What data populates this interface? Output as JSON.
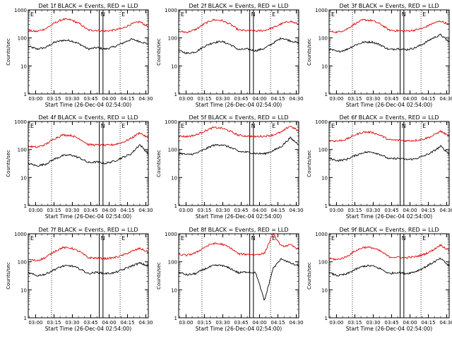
{
  "chart_data": {
    "type": "line",
    "layout": "3x3 grid",
    "ylabel": "Counts/sec",
    "y_scale": "log",
    "ylim": [
      1,
      1000
    ],
    "y_ticks": [
      "1",
      "10",
      "100",
      "1000"
    ],
    "x_ticks": [
      "03:00",
      "03:15",
      "03:30",
      "03:45",
      "04:00",
      "04:15",
      "04:30"
    ],
    "xlim": [
      "02:54",
      "04:32"
    ],
    "xlabel": "Start Time (26-Dec-04 02:54:00)",
    "legend_text": "BLACK = Events, RED = LLD",
    "series_colors": {
      "events": "#000000",
      "lld": "#e00000"
    },
    "markers": {
      "dotted_lines": [
        "03:13",
        "04:09"
      ],
      "solid_lines": [
        "03:52",
        "03:55"
      ],
      "labels": [
        "E",
        "N",
        "E"
      ]
    },
    "panels": [
      {
        "title": "Det 1f",
        "series": [
          {
            "key": "events",
            "values": [
              50,
              40,
              45,
              68,
              82,
              80,
              60,
              40,
              45,
              40,
              48,
              65,
              90,
              75,
              60
            ]
          },
          {
            "key": "lld",
            "values": [
              180,
              170,
              210,
              330,
              460,
              440,
              320,
              190,
              185,
              175,
              190,
              220,
              310,
              380,
              250
            ]
          }
        ]
      },
      {
        "title": "Det 2f",
        "series": [
          {
            "key": "events",
            "values": [
              35,
              28,
              32,
              50,
              68,
              75,
              58,
              38,
              40,
              35,
              42,
              65,
              100,
              80,
              65
            ]
          },
          {
            "key": "lld",
            "values": [
              170,
              160,
              200,
              320,
              440,
              420,
              310,
              190,
              180,
              175,
              185,
              230,
              320,
              400,
              300
            ]
          }
        ]
      },
      {
        "title": "Det 3f",
        "series": [
          {
            "key": "events",
            "values": [
              40,
              32,
              38,
              55,
              70,
              72,
              56,
              38,
              42,
              38,
              44,
              62,
              95,
              130,
              70
            ]
          },
          {
            "key": "lld",
            "values": [
              170,
              160,
              200,
              320,
              440,
              420,
              310,
              190,
              180,
              175,
              190,
              225,
              320,
              400,
              300
            ]
          }
        ]
      },
      {
        "title": "Det 4f",
        "series": [
          {
            "key": "events",
            "values": [
              32,
              26,
              30,
              45,
              60,
              64,
              50,
              34,
              36,
              32,
              38,
              52,
              70,
              150,
              70
            ]
          },
          {
            "key": "lld",
            "values": [
              130,
              120,
              150,
              240,
              330,
              320,
              240,
              150,
              145,
              140,
              150,
              180,
              250,
              400,
              250
            ]
          }
        ]
      },
      {
        "title": "Det 5f",
        "series": [
          {
            "key": "events",
            "values": [
              75,
              65,
              72,
              100,
              140,
              150,
              120,
              85,
              80,
              72,
              70,
              90,
              130,
              260,
              150
            ]
          },
          {
            "key": "lld",
            "values": [
              300,
              290,
              330,
              450,
              600,
              580,
              450,
              320,
              300,
              290,
              300,
              330,
              420,
              700,
              450
            ]
          }
        ]
      },
      {
        "title": "Det 6f",
        "series": [
          {
            "key": "events",
            "values": [
              48,
              40,
              44,
              60,
              78,
              82,
              66,
              46,
              48,
              44,
              46,
              58,
              80,
              130,
              70
            ]
          },
          {
            "key": "lld",
            "values": [
              210,
              200,
              230,
              330,
              420,
              410,
              320,
              220,
              215,
              205,
              210,
              235,
              300,
              450,
              300
            ]
          }
        ]
      },
      {
        "title": "Det 7f",
        "series": [
          {
            "key": "events",
            "values": [
              40,
              32,
              36,
              52,
              70,
              72,
              56,
              38,
              42,
              38,
              40,
              52,
              70,
              90,
              70
            ]
          },
          {
            "key": "lld",
            "values": [
              120,
              110,
              140,
              230,
              320,
              310,
              230,
              140,
              135,
              130,
              140,
              170,
              230,
              300,
              220
            ]
          }
        ]
      },
      {
        "title": "Det 8f",
        "series": [
          {
            "key": "events",
            "values": [
              42,
              34,
              38,
              55,
              72,
              75,
              58,
              40,
              44,
              40,
              4,
              58,
              130,
              90,
              70
            ]
          },
          {
            "key": "lld",
            "values": [
              180,
              170,
              210,
              330,
              450,
              430,
              320,
              190,
              185,
              180,
              200,
              1000,
              350,
              400,
              280
            ]
          }
        ]
      },
      {
        "title": "Det 9f",
        "series": [
          {
            "key": "events",
            "values": [
              40,
              32,
              36,
              52,
              70,
              72,
              56,
              38,
              42,
              38,
              44,
              60,
              90,
              130,
              70
            ]
          },
          {
            "key": "lld",
            "values": [
              130,
              120,
              150,
              240,
              330,
              320,
              240,
              150,
              145,
              140,
              150,
              180,
              250,
              400,
              250
            ]
          }
        ]
      }
    ]
  }
}
